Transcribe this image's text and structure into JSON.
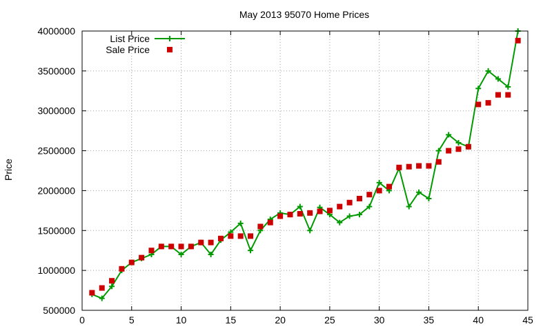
{
  "chart_data": {
    "type": "line",
    "title": "May 2013 95070 Home Prices",
    "xlabel": "",
    "ylabel": "Price",
    "xlim": [
      0,
      45
    ],
    "ylim": [
      500000,
      4000000
    ],
    "x_ticks": [
      0,
      5,
      10,
      15,
      20,
      25,
      30,
      35,
      40,
      45
    ],
    "y_ticks": [
      500000,
      1000000,
      1500000,
      2000000,
      2500000,
      3000000,
      3500000,
      4000000
    ],
    "grid": true,
    "legend_position": "top-left",
    "series": [
      {
        "name": "List Price",
        "style": "line-with-plus-markers",
        "color": "#009900",
        "x": [
          1,
          2,
          3,
          4,
          5,
          6,
          7,
          8,
          9,
          10,
          11,
          12,
          13,
          14,
          15,
          16,
          17,
          18,
          19,
          20,
          21,
          22,
          23,
          24,
          25,
          26,
          27,
          28,
          29,
          30,
          31,
          32,
          33,
          34,
          35,
          36,
          37,
          38,
          39,
          40,
          41,
          42,
          43,
          44
        ],
        "y": [
          700000,
          650000,
          800000,
          1000000,
          1100000,
          1150000,
          1200000,
          1300000,
          1300000,
          1200000,
          1300000,
          1350000,
          1200000,
          1380000,
          1480000,
          1590000,
          1250000,
          1500000,
          1640000,
          1720000,
          1700000,
          1800000,
          1500000,
          1790000,
          1700000,
          1600000,
          1680000,
          1700000,
          1800000,
          2100000,
          2000000,
          2280000,
          1800000,
          1980000,
          1900000,
          2500000,
          2700000,
          2600000,
          2550000,
          3280000,
          3500000,
          3400000,
          3300000,
          4000000
        ]
      },
      {
        "name": "Sale Price",
        "style": "square-markers",
        "color": "#cc0000",
        "x": [
          1,
          2,
          3,
          4,
          5,
          6,
          7,
          8,
          9,
          10,
          11,
          12,
          13,
          14,
          15,
          16,
          17,
          18,
          19,
          20,
          21,
          22,
          23,
          24,
          25,
          26,
          27,
          28,
          29,
          30,
          31,
          32,
          33,
          34,
          35,
          36,
          37,
          38,
          39,
          40,
          41,
          42,
          43,
          44
        ],
        "y": [
          720000,
          780000,
          870000,
          1020000,
          1100000,
          1160000,
          1250000,
          1300000,
          1300000,
          1300000,
          1300000,
          1350000,
          1350000,
          1400000,
          1430000,
          1430000,
          1430000,
          1550000,
          1600000,
          1680000,
          1700000,
          1710000,
          1720000,
          1740000,
          1750000,
          1800000,
          1850000,
          1900000,
          1950000,
          2000000,
          2050000,
          2290000,
          2300000,
          2310000,
          2310000,
          2360000,
          2500000,
          2520000,
          2550000,
          3080000,
          3100000,
          3200000,
          3200000,
          3880000
        ]
      }
    ]
  }
}
